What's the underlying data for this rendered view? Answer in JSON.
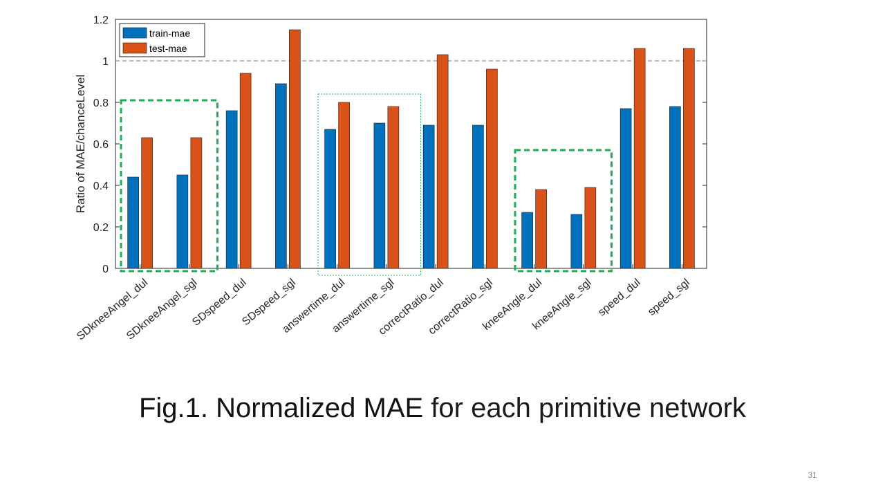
{
  "chart_data": {
    "type": "bar",
    "ylabel": "Ratio of MAE/chanceLevel",
    "xlabel": "",
    "ylim": [
      0,
      1.2
    ],
    "yticks": [
      "0",
      "0.2",
      "0.4",
      "0.6",
      "0.8",
      "1",
      "1.2"
    ],
    "reference_line": {
      "y": 1,
      "style": "dashed"
    },
    "legend_position": "top-left",
    "categories": [
      "SDkneeAngel_dul",
      "SDkneeAngel_sgl",
      "SDspeed_dul",
      "SDspeed_sgl",
      "answertime_dul",
      "answertime_sgl",
      "correctRatio_dul",
      "correctRatio_sgl",
      "kneeAngle_dul",
      "kneeAngle_sgl",
      "speed_dul",
      "speed_sgl"
    ],
    "series": [
      {
        "name": "train-mae",
        "color": "#0072BD",
        "values": [
          0.44,
          0.45,
          0.76,
          0.89,
          0.67,
          0.7,
          0.69,
          0.69,
          0.27,
          0.26,
          0.77,
          0.78
        ]
      },
      {
        "name": "test-mae",
        "color": "#D95319",
        "values": [
          0.63,
          0.63,
          0.94,
          1.15,
          0.8,
          0.78,
          1.03,
          0.96,
          0.38,
          0.39,
          1.06,
          1.06
        ]
      }
    ],
    "highlight_groups": [
      {
        "categories": [
          "SDkneeAngel_dul",
          "SDkneeAngel_sgl"
        ],
        "style": "bold-dashed",
        "color": "#1AAF54"
      },
      {
        "categories": [
          "answertime_dul",
          "answertime_sgl"
        ],
        "style": "thin-dotted",
        "color": "#1AAF54"
      },
      {
        "categories": [
          "kneeAngle_dul",
          "kneeAngle_sgl"
        ],
        "style": "bold-dashed",
        "color": "#1AAF54"
      }
    ]
  },
  "caption": {
    "strong": "Fig.1. Normalized MAE",
    "light": " for each primitive network"
  },
  "page_number": "31"
}
